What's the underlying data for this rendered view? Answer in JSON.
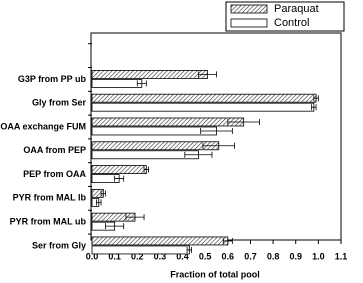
{
  "chart_data": {
    "type": "hbar",
    "x_label": "Fraction of total pool",
    "categories": [
      null,
      "G3P from PP ub",
      "Gly from Ser",
      "OAA  exchange FUM",
      "OAA from PEP",
      "PEP from OAA",
      "PYR from MAL lb",
      "PYR from MAL ub",
      "Ser from Gly"
    ],
    "series": [
      {
        "name": "Paraquat",
        "color": "hatched",
        "values": [
          null,
          0.51,
          0.99,
          0.67,
          0.56,
          0.24,
          0.05,
          0.19,
          0.6
        ],
        "errors": [
          null,
          0.04,
          0.01,
          0.07,
          0.07,
          0.01,
          0.01,
          0.04,
          0.02
        ]
      },
      {
        "name": "Control",
        "color": "#ffffff",
        "values": [
          null,
          0.22,
          0.98,
          0.55,
          0.47,
          0.12,
          0.03,
          0.1,
          0.43
        ],
        "errors": [
          null,
          0.02,
          0.01,
          0.07,
          0.06,
          0.02,
          0.01,
          0.04,
          0.01
        ]
      }
    ],
    "xlim": [
      0,
      1.1
    ],
    "xticks": [
      {
        "value": 0,
        "label": "0.0"
      },
      0.1,
      0.2,
      0.3,
      0.4,
      0.5,
      0.6,
      0.7,
      0.8,
      0.9,
      {
        "value": 1,
        "label": "1.0"
      },
      1.1
    ],
    "legend": "top-right"
  }
}
